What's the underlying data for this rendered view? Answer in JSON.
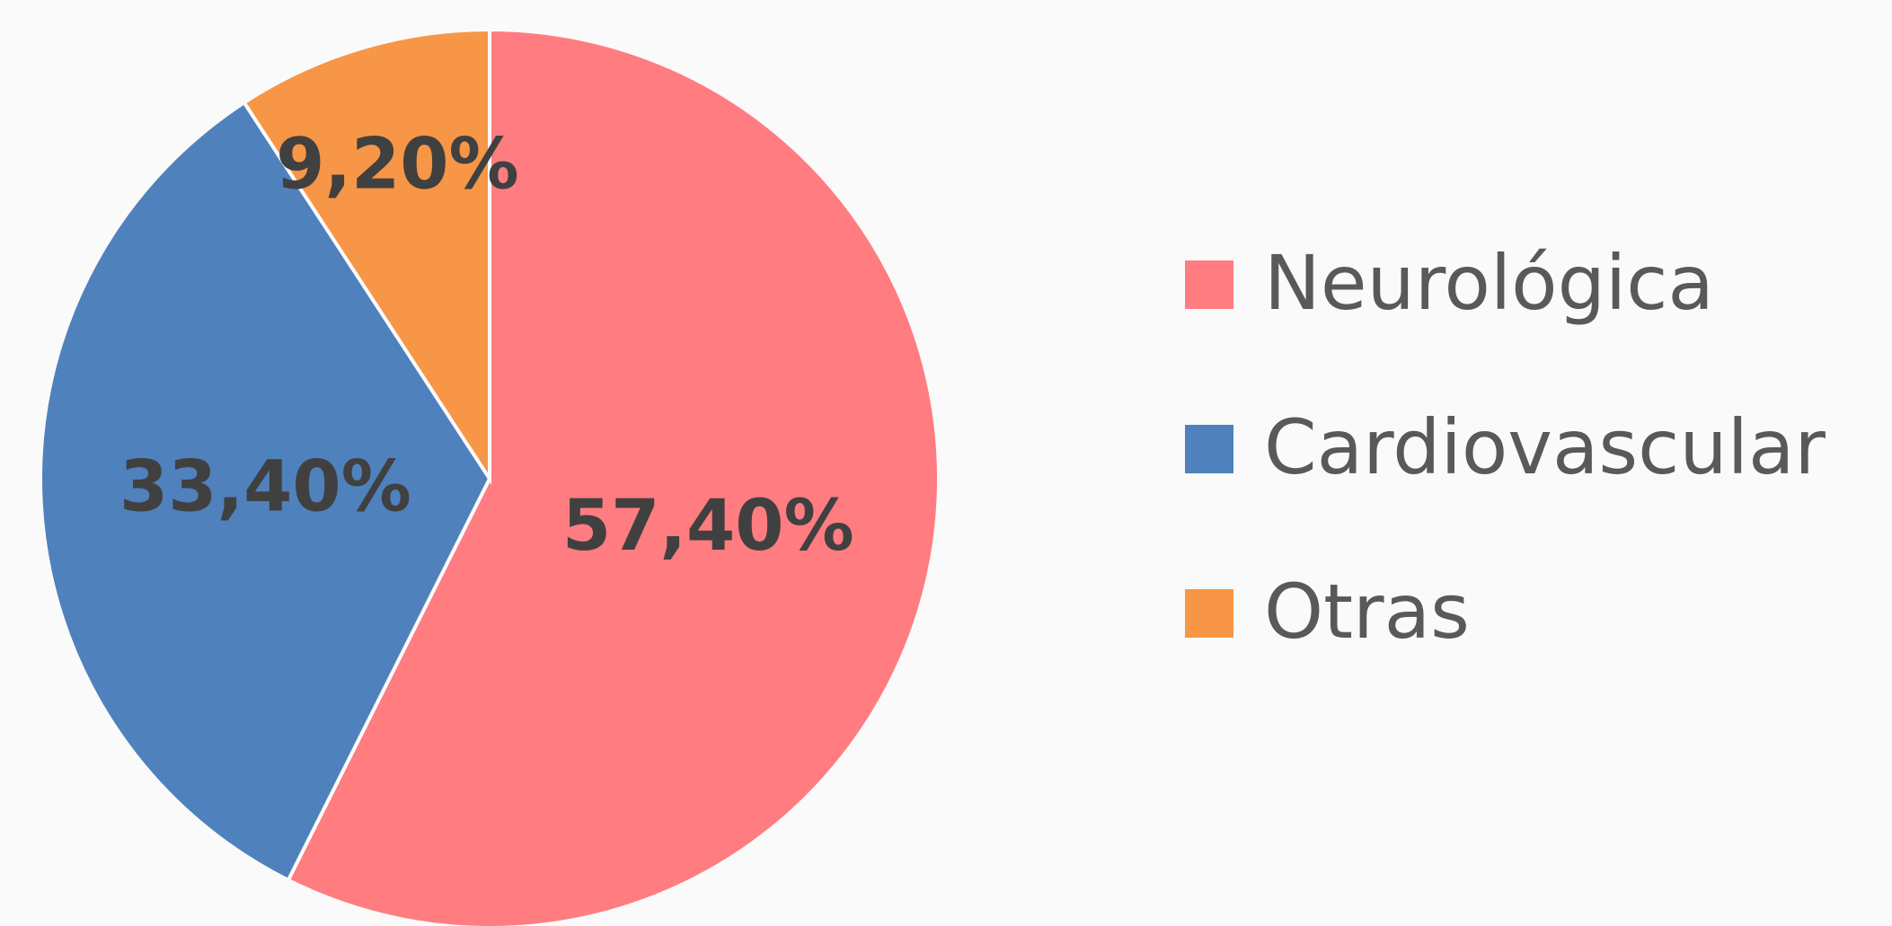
{
  "chart_data": {
    "type": "pie",
    "categories": [
      "Neurológica",
      "Cardiovascular",
      "Otras"
    ],
    "values": [
      57.4,
      33.4,
      9.2
    ],
    "value_labels": [
      "57,40%",
      "33,40%",
      "9,20%"
    ],
    "colors": [
      "#ff7c80",
      "#4f81bd",
      "#f79646"
    ],
    "legend": "right"
  }
}
